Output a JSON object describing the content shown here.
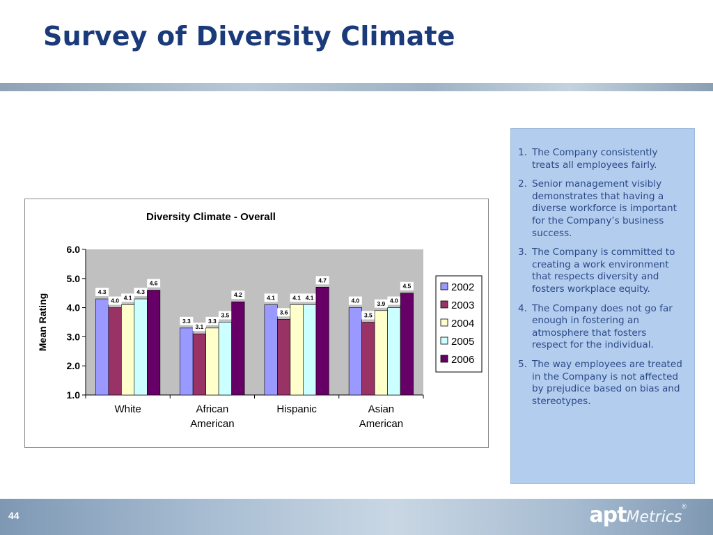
{
  "slide": {
    "title": "Survey of Diversity Climate",
    "number": "44",
    "logo": {
      "main": "apt",
      "sub": "Metrics",
      "mark": "®"
    }
  },
  "notes": [
    {
      "num": "1.",
      "text": "The Company consistently treats all employees fairly."
    },
    {
      "num": "2.",
      "text": "Senior management visibly demonstrates that having a diverse workforce is important for the Company’s business success."
    },
    {
      "num": "3.",
      "text": "The Company is committed to creating a work environment that respects diversity and fosters workplace equity."
    },
    {
      "num": "4.",
      "text": "The Company does not go far enough in fostering an atmosphere that fosters respect for the individual."
    },
    {
      "num": "5.",
      "text": "The way employees are treated in the Company is not affected by prejudice based on bias and stereotypes."
    }
  ],
  "chart_data": {
    "type": "bar",
    "title": "Diversity Climate - Overall",
    "xlabel": "",
    "ylabel": "Mean Rating",
    "ylim": [
      1.0,
      6.0
    ],
    "yticks": [
      "1.0",
      "2.0",
      "3.0",
      "4.0",
      "5.0",
      "6.0"
    ],
    "grid": false,
    "legend_position": "right",
    "categories": [
      [
        "White"
      ],
      [
        "African",
        "American"
      ],
      [
        "Hispanic"
      ],
      [
        "Asian",
        "American"
      ]
    ],
    "series": [
      {
        "name": "2002",
        "color": "#9999ff",
        "values": [
          4.3,
          3.3,
          4.1,
          4.0
        ]
      },
      {
        "name": "2003",
        "color": "#993366",
        "values": [
          4.0,
          3.1,
          3.6,
          3.5
        ]
      },
      {
        "name": "2004",
        "color": "#ffffcc",
        "values": [
          4.1,
          3.3,
          4.1,
          3.9
        ]
      },
      {
        "name": "2005",
        "color": "#ccffff",
        "values": [
          4.3,
          3.5,
          4.1,
          4.0
        ]
      },
      {
        "name": "2006",
        "color": "#660066",
        "values": [
          4.6,
          4.2,
          4.7,
          4.5
        ]
      }
    ],
    "plot_background": "#c0c0c0"
  }
}
